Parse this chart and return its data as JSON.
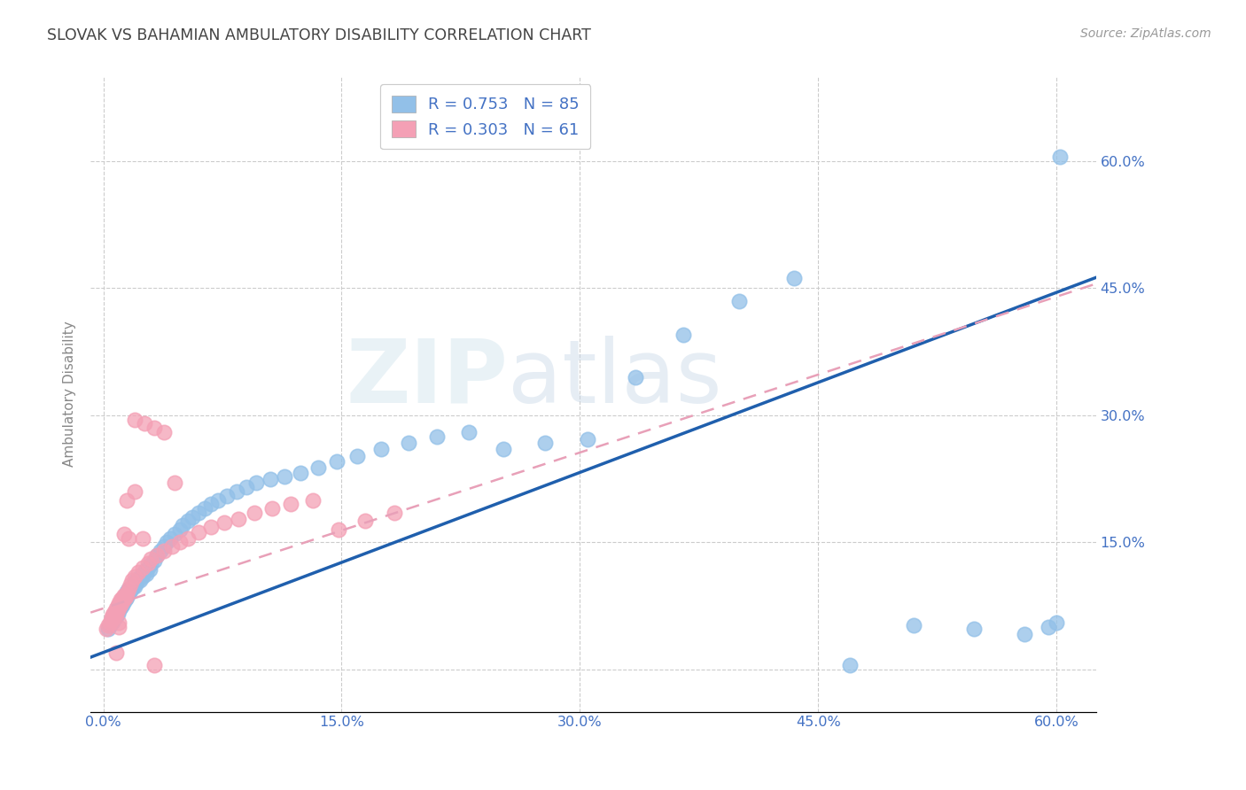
{
  "title": "SLOVAK VS BAHAMIAN AMBULATORY DISABILITY CORRELATION CHART",
  "source": "Source: ZipAtlas.com",
  "ylabel": "Ambulatory Disability",
  "xlim": [
    -0.008,
    0.625
  ],
  "ylim": [
    -0.05,
    0.7
  ],
  "yticks": [
    0.0,
    0.15,
    0.3,
    0.45,
    0.6
  ],
  "xticks": [
    0.0,
    0.15,
    0.3,
    0.45,
    0.6
  ],
  "ytick_labels": [
    "",
    "15.0%",
    "30.0%",
    "45.0%",
    "60.0%"
  ],
  "xtick_labels": [
    "0.0%",
    "15.0%",
    "30.0%",
    "45.0%",
    "60.0%"
  ],
  "slovak_color": "#92C0E8",
  "bahamian_color": "#F4A0B5",
  "slovak_line_color": "#1F5FAD",
  "bahamian_line_color": "#E8A0B8",
  "background_color": "#ffffff",
  "grid_color": "#cccccc",
  "title_color": "#444444",
  "source_color": "#999999",
  "tick_color": "#4472C4",
  "ylabel_color": "#888888",
  "watermark_text": "ZIPatlas",
  "legend_r_color": "#4472C4",
  "legend_n_color": "#E05070",
  "sk_x": [
    0.003,
    0.004,
    0.005,
    0.005,
    0.006,
    0.006,
    0.007,
    0.007,
    0.008,
    0.008,
    0.009,
    0.009,
    0.01,
    0.01,
    0.011,
    0.011,
    0.012,
    0.012,
    0.013,
    0.013,
    0.014,
    0.014,
    0.015,
    0.015,
    0.016,
    0.016,
    0.017,
    0.018,
    0.018,
    0.019,
    0.02,
    0.02,
    0.021,
    0.022,
    0.023,
    0.024,
    0.025,
    0.026,
    0.027,
    0.028,
    0.029,
    0.03,
    0.032,
    0.034,
    0.036,
    0.038,
    0.04,
    0.042,
    0.045,
    0.048,
    0.05,
    0.053,
    0.056,
    0.06,
    0.064,
    0.068,
    0.072,
    0.078,
    0.084,
    0.09,
    0.096,
    0.105,
    0.114,
    0.124,
    0.135,
    0.147,
    0.16,
    0.175,
    0.192,
    0.21,
    0.23,
    0.252,
    0.278,
    0.305,
    0.335,
    0.365,
    0.4,
    0.435,
    0.47,
    0.51,
    0.548,
    0.58,
    0.595,
    0.6,
    0.602
  ],
  "sk_y": [
    0.048,
    0.052,
    0.055,
    0.058,
    0.056,
    0.062,
    0.06,
    0.065,
    0.063,
    0.068,
    0.066,
    0.072,
    0.07,
    0.075,
    0.073,
    0.078,
    0.076,
    0.082,
    0.08,
    0.085,
    0.083,
    0.088,
    0.086,
    0.092,
    0.09,
    0.095,
    0.093,
    0.098,
    0.096,
    0.1,
    0.098,
    0.104,
    0.102,
    0.108,
    0.105,
    0.112,
    0.11,
    0.116,
    0.113,
    0.12,
    0.118,
    0.124,
    0.128,
    0.135,
    0.14,
    0.145,
    0.15,
    0.155,
    0.16,
    0.165,
    0.17,
    0.175,
    0.18,
    0.185,
    0.19,
    0.195,
    0.2,
    0.205,
    0.21,
    0.215,
    0.22,
    0.225,
    0.228,
    0.232,
    0.238,
    0.245,
    0.252,
    0.26,
    0.268,
    0.275,
    0.28,
    0.26,
    0.268,
    0.272,
    0.345,
    0.395,
    0.435,
    0.462,
    0.005,
    0.052,
    0.048,
    0.042,
    0.05,
    0.055,
    0.605
  ],
  "bh_x": [
    0.002,
    0.003,
    0.004,
    0.005,
    0.005,
    0.006,
    0.006,
    0.007,
    0.007,
    0.008,
    0.008,
    0.009,
    0.009,
    0.01,
    0.01,
    0.011,
    0.011,
    0.012,
    0.012,
    0.013,
    0.013,
    0.014,
    0.015,
    0.016,
    0.017,
    0.018,
    0.02,
    0.022,
    0.025,
    0.028,
    0.03,
    0.034,
    0.038,
    0.043,
    0.048,
    0.053,
    0.06,
    0.068,
    0.076,
    0.085,
    0.095,
    0.106,
    0.118,
    0.132,
    0.148,
    0.165,
    0.183,
    0.045,
    0.038,
    0.032,
    0.026,
    0.02,
    0.016,
    0.013,
    0.01,
    0.008,
    0.01,
    0.015,
    0.02,
    0.025,
    0.032
  ],
  "bh_y": [
    0.048,
    0.052,
    0.055,
    0.058,
    0.062,
    0.06,
    0.065,
    0.063,
    0.068,
    0.066,
    0.072,
    0.07,
    0.075,
    0.073,
    0.078,
    0.076,
    0.082,
    0.08,
    0.085,
    0.083,
    0.088,
    0.086,
    0.09,
    0.095,
    0.1,
    0.105,
    0.11,
    0.115,
    0.12,
    0.125,
    0.13,
    0.135,
    0.14,
    0.145,
    0.15,
    0.155,
    0.162,
    0.168,
    0.173,
    0.178,
    0.185,
    0.19,
    0.195,
    0.2,
    0.165,
    0.175,
    0.185,
    0.22,
    0.28,
    0.285,
    0.29,
    0.295,
    0.155,
    0.16,
    0.055,
    0.02,
    0.05,
    0.2,
    0.21,
    0.155,
    0.005
  ]
}
